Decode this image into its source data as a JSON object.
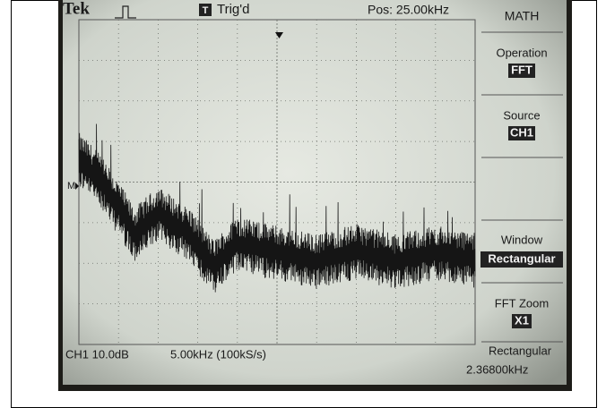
{
  "header": {
    "brand": "Tek",
    "trigger_icon": "T",
    "trigger_status": "Trig'd",
    "position": "Pos: 25.00kHz"
  },
  "marker": "M",
  "menu": {
    "title": "MATH",
    "items": [
      {
        "label": "Operation",
        "value": "FFT"
      },
      {
        "label": "Source",
        "value": "CH1"
      },
      {
        "label": "Window",
        "value": "Rectangular"
      },
      {
        "label": "FFT Zoom",
        "value": "X1"
      }
    ],
    "footer_label": "Rectangular"
  },
  "footer": {
    "channel": "CH1 10.0dB",
    "timebase": "5.00kHz (100kS/s)",
    "cursor": "2.36800kHz"
  }
}
